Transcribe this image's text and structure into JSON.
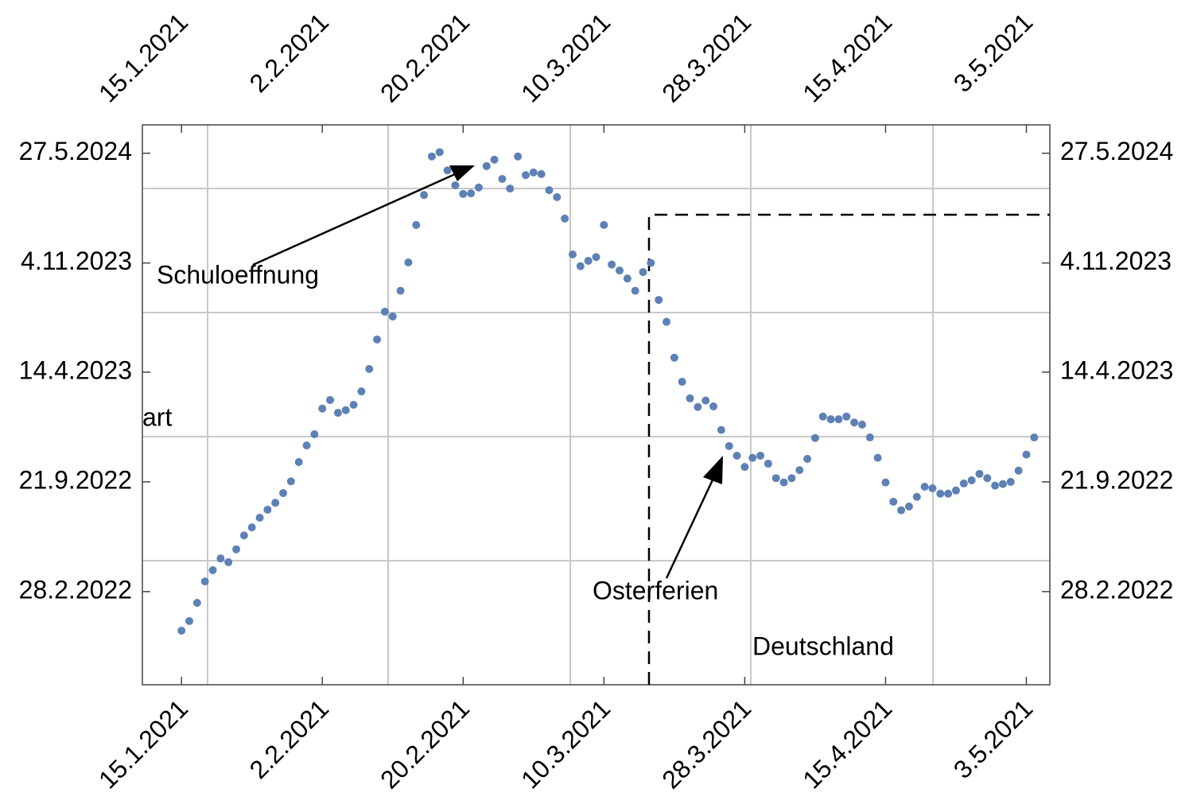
{
  "chart_data": {
    "type": "scatter",
    "color": "#5e81b5",
    "annotations": [
      "Schuloeffnung",
      "Osterferien",
      "Deutschland",
      "art"
    ],
    "xlim": [
      "2021-01-10",
      "2021-05-06"
    ],
    "xticks": [
      {
        "value": "2021-01-15",
        "label": "15.1.2021"
      },
      {
        "value": "2021-02-02",
        "label": "2.2.2021"
      },
      {
        "value": "2021-02-20",
        "label": "20.2.2021"
      },
      {
        "value": "2021-03-10",
        "label": "10.3.2021"
      },
      {
        "value": "2021-03-28",
        "label": "28.3.2021"
      },
      {
        "value": "2021-04-15",
        "label": "15.4.2021"
      },
      {
        "value": "2021-05-03",
        "label": "3.5.2021"
      }
    ],
    "ylim": [
      "2021-09-07",
      "2024-07-19"
    ],
    "yticks": [
      {
        "value": "2022-02-28",
        "label": "28.2.2022"
      },
      {
        "value": "2022-09-21",
        "label": "21.9.2022"
      },
      {
        "value": "2023-04-14",
        "label": "14.4.2023"
      },
      {
        "value": "2023-11-04",
        "label": "4.11.2023"
      },
      {
        "value": "2024-05-27",
        "label": "27.5.2024"
      }
    ],
    "x": [
      "2021-01-15",
      "2021-01-16",
      "2021-01-17",
      "2021-01-18",
      "2021-01-19",
      "2021-01-20",
      "2021-01-21",
      "2021-01-22",
      "2021-01-23",
      "2021-01-24",
      "2021-01-25",
      "2021-01-26",
      "2021-01-27",
      "2021-01-28",
      "2021-01-29",
      "2021-01-30",
      "2021-01-31",
      "2021-02-01",
      "2021-02-02",
      "2021-02-03",
      "2021-02-04",
      "2021-02-05",
      "2021-02-06",
      "2021-02-07",
      "2021-02-08",
      "2021-02-09",
      "2021-02-10",
      "2021-02-11",
      "2021-02-12",
      "2021-02-13",
      "2021-02-14",
      "2021-02-15",
      "2021-02-16",
      "2021-02-17",
      "2021-02-18",
      "2021-02-19",
      "2021-02-20",
      "2021-02-21",
      "2021-02-22",
      "2021-02-23",
      "2021-02-24",
      "2021-02-25",
      "2021-02-26",
      "2021-02-27",
      "2021-02-28",
      "2021-03-01",
      "2021-03-02",
      "2021-03-03",
      "2021-03-04",
      "2021-03-05",
      "2021-03-06",
      "2021-03-07",
      "2021-03-08",
      "2021-03-09",
      "2021-03-10",
      "2021-03-11",
      "2021-03-12",
      "2021-03-13",
      "2021-03-14",
      "2021-03-15",
      "2021-03-16",
      "2021-03-17",
      "2021-03-18",
      "2021-03-19",
      "2021-03-20",
      "2021-03-21",
      "2021-03-22",
      "2021-03-23",
      "2021-03-24",
      "2021-03-25",
      "2021-03-26",
      "2021-03-27",
      "2021-03-28",
      "2021-03-29",
      "2021-03-30",
      "2021-03-31",
      "2021-04-01",
      "2021-04-02",
      "2021-04-03",
      "2021-04-04",
      "2021-04-05",
      "2021-04-06",
      "2021-04-07",
      "2021-04-08",
      "2021-04-09",
      "2021-04-10",
      "2021-04-11",
      "2021-04-12",
      "2021-04-13",
      "2021-04-14",
      "2021-04-15",
      "2021-04-16",
      "2021-04-17",
      "2021-04-18",
      "2021-04-19",
      "2021-04-20",
      "2021-04-21",
      "2021-04-22",
      "2021-04-23",
      "2021-04-24",
      "2021-04-25",
      "2021-04-26",
      "2021-04-27",
      "2021-04-28",
      "2021-04-29",
      "2021-04-30",
      "2021-05-01",
      "2021-05-02",
      "2021-05-03",
      "2021-05-04"
    ],
    "values": [
      "2021-12-17",
      "2022-01-04",
      "2022-02-07",
      "2022-03-19",
      "2022-04-09",
      "2022-05-01",
      "2022-04-24",
      "2022-05-18",
      "2022-06-13",
      "2022-06-28",
      "2022-07-16",
      "2022-07-31",
      "2022-08-13",
      "2022-08-31",
      "2022-09-22",
      "2022-10-28",
      "2022-11-28",
      "2022-12-19",
      "2023-02-05",
      "2023-02-21",
      "2023-01-28",
      "2023-02-02",
      "2023-02-12",
      "2023-03-09",
      "2023-04-20",
      "2023-06-14",
      "2023-08-05",
      "2023-07-27",
      "2023-09-13",
      "2023-11-05",
      "2024-01-14",
      "2024-03-10",
      "2024-05-21",
      "2024-05-29",
      "2024-04-25",
      "2024-03-28",
      "2024-03-12",
      "2024-03-13",
      "2024-03-24",
      "2024-05-03",
      "2024-05-15",
      "2024-04-09",
      "2024-03-22",
      "2024-05-21",
      "2024-04-16",
      "2024-04-21",
      "2024-04-18",
      "2024-03-19",
      "2024-03-06",
      "2024-01-26",
      "2023-11-20",
      "2023-10-29",
      "2023-11-08",
      "2023-11-15",
      "2024-01-14",
      "2023-11-01",
      "2023-10-21",
      "2023-10-06",
      "2023-09-13",
      "2023-10-18",
      "2023-11-04",
      "2023-08-27",
      "2023-07-17",
      "2023-05-11",
      "2023-03-27",
      "2023-02-24",
      "2023-02-08",
      "2023-02-20",
      "2023-02-09",
      "2022-12-27",
      "2022-11-27",
      "2022-11-09",
      "2022-10-19",
      "2022-11-05",
      "2022-11-09",
      "2022-10-25",
      "2022-09-28",
      "2022-09-20",
      "2022-09-28",
      "2022-10-13",
      "2022-11-03",
      "2022-12-12",
      "2023-01-21",
      "2023-01-16",
      "2023-01-16",
      "2023-01-21",
      "2023-01-10",
      "2023-01-06",
      "2022-12-13",
      "2022-11-05",
      "2022-09-20",
      "2022-08-15",
      "2022-07-30",
      "2022-08-06",
      "2022-08-24",
      "2022-09-12",
      "2022-09-09",
      "2022-08-30",
      "2022-08-30",
      "2022-09-05",
      "2022-09-18",
      "2022-09-24",
      "2022-10-06",
      "2022-09-28",
      "2022-09-14",
      "2022-09-17",
      "2022-09-21",
      "2022-10-12",
      "2022-11-11",
      "2022-12-13"
    ]
  }
}
